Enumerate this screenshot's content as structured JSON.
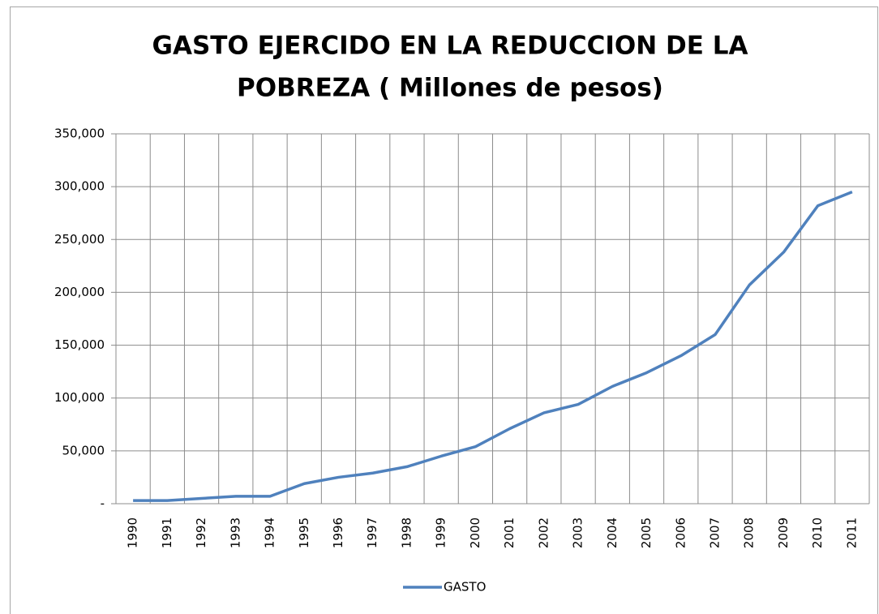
{
  "chart_data": {
    "type": "line",
    "title": [
      "GASTO EJERCIDO EN LA REDUCCION DE LA",
      "POBREZA ( Millones de pesos)"
    ],
    "categories": [
      "1990",
      "1991",
      "1992",
      "1993",
      "1994",
      "1995",
      "1996",
      "1997",
      "1998",
      "1999",
      "2000",
      "2001",
      "2002",
      "2003",
      "2004",
      "2005",
      "2006",
      "2007",
      "2008",
      "2009",
      "2010",
      "2011"
    ],
    "series": [
      {
        "name": "GASTO",
        "color": "#4f81bd",
        "values": [
          3000,
          3000,
          5000,
          7000,
          7000,
          19000,
          25000,
          29000,
          35000,
          45000,
          54000,
          71000,
          86000,
          94000,
          111000,
          124000,
          140000,
          160000,
          207000,
          238000,
          282000,
          295000
        ]
      }
    ],
    "ylim": [
      0,
      350000
    ],
    "yticks": [
      {
        "value": 0,
        "label": "-"
      },
      {
        "value": 50000,
        "label": "50,000"
      },
      {
        "value": 100000,
        "label": "100,000"
      },
      {
        "value": 150000,
        "label": "150,000"
      },
      {
        "value": 200000,
        "label": "200,000"
      },
      {
        "value": 250000,
        "label": "250,000"
      },
      {
        "value": 300000,
        "label": "300,000"
      },
      {
        "value": 350000,
        "label": "350,000"
      }
    ],
    "grid": true,
    "legend": "bottom"
  }
}
